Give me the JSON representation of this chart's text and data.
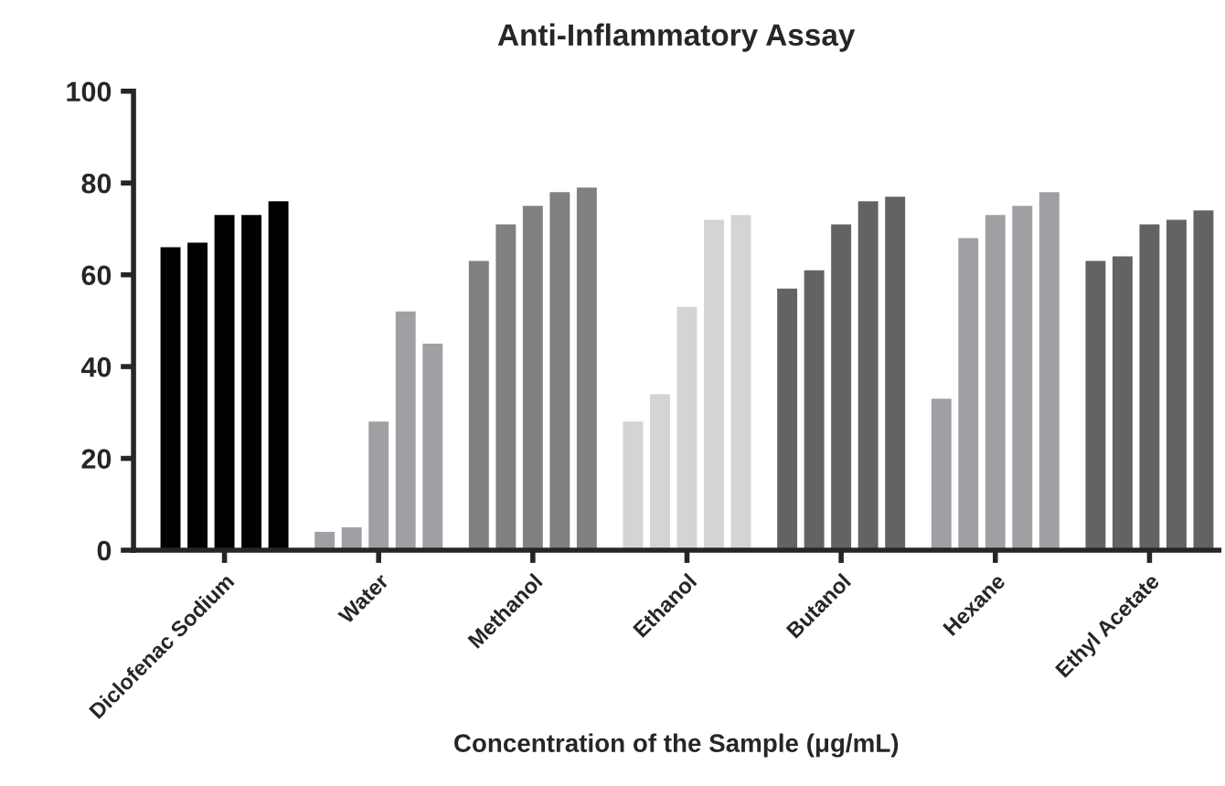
{
  "chart_data": {
    "type": "bar",
    "title": "Anti-Inflammatory Assay",
    "xlabel": "Concentration of the Sample (μg/mL)",
    "categories": [
      "Diclofenac Sodium",
      "Water",
      "Methanol",
      "Ethanol",
      "Butanol",
      "Hexane",
      "Ethyl Acetate"
    ],
    "series": [
      {
        "colors": [
          "#000000",
          "#a0a0a4",
          "#808080",
          "#d4d4d4",
          "#636363",
          "#a0a0a4",
          "#636363"
        ],
        "values": [
          66,
          4,
          63,
          28,
          57,
          33,
          63
        ]
      },
      {
        "colors": [
          "#000000",
          "#a0a0a4",
          "#808080",
          "#d4d4d4",
          "#636363",
          "#a0a0a4",
          "#636363"
        ],
        "values": [
          67,
          5,
          71,
          34,
          61,
          68,
          64
        ]
      },
      {
        "colors": [
          "#000000",
          "#a0a0a4",
          "#808080",
          "#d4d4d4",
          "#636363",
          "#a0a0a4",
          "#636363"
        ],
        "values": [
          73,
          28,
          75,
          53,
          71,
          73,
          71
        ]
      },
      {
        "colors": [
          "#000000",
          "#a0a0a4",
          "#808080",
          "#d4d4d4",
          "#636363",
          "#a0a0a4",
          "#636363"
        ],
        "values": [
          73,
          52,
          78,
          72,
          76,
          75,
          72
        ]
      },
      {
        "colors": [
          "#000000",
          "#a0a0a4",
          "#808080",
          "#d4d4d4",
          "#636363",
          "#a0a0a4",
          "#636363"
        ],
        "values": [
          76,
          45,
          79,
          73,
          77,
          78,
          74
        ]
      }
    ],
    "ylim": [
      0,
      100
    ],
    "yticks": [
      0,
      20,
      40,
      60,
      80,
      100
    ],
    "grid": false,
    "legend": false
  }
}
